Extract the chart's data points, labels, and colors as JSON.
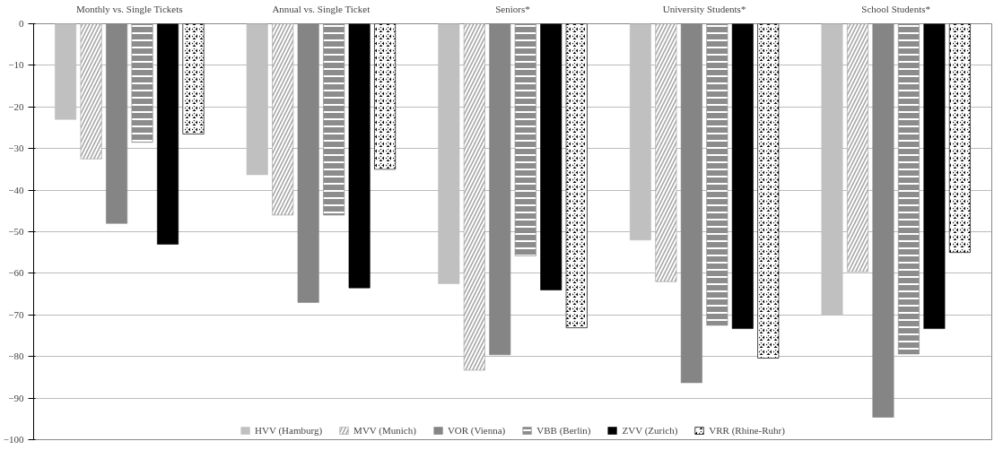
{
  "chart_data": {
    "type": "bar",
    "categories": [
      "Monthly vs. Single Tickets",
      "Annual vs. Single Ticket",
      "Seniors*",
      "University Students*",
      "School Students*"
    ],
    "series": [
      {
        "name": "HVV (Hamburg)",
        "color": "#c0c0c0",
        "values": [
          -23,
          -36.3,
          -62.5,
          -52,
          -70
        ]
      },
      {
        "name": "MVV (Munich)",
        "color": "#a6a6a6",
        "values": [
          -32.5,
          -46,
          -83.3,
          -62,
          -59.6
        ]
      },
      {
        "name": "VOR (Vienna)",
        "color": "#858585",
        "values": [
          -48,
          -67,
          -79.6,
          -86.3,
          -94.6
        ]
      },
      {
        "name": "VBB (Berlin)",
        "color": "#8c8c8c",
        "values": [
          -28.5,
          -46,
          -55.8,
          -72.5,
          -79.4
        ]
      },
      {
        "name": "ZVV (Zurich)",
        "color": "#000000",
        "values": [
          -53,
          -63.5,
          -64,
          -73.3,
          -73.3
        ]
      },
      {
        "name": "VRR (Rhine-Ruhr)",
        "color": "#000000",
        "values": [
          -26.5,
          -35,
          -73.1,
          -80.4,
          -55
        ]
      }
    ],
    "ylim": [
      -100,
      0
    ],
    "yticks": [
      -100,
      -90,
      -80,
      -70,
      -60,
      -50,
      -40,
      -30,
      -20,
      -10,
      0
    ],
    "grid": "y",
    "legend": "bottom"
  }
}
